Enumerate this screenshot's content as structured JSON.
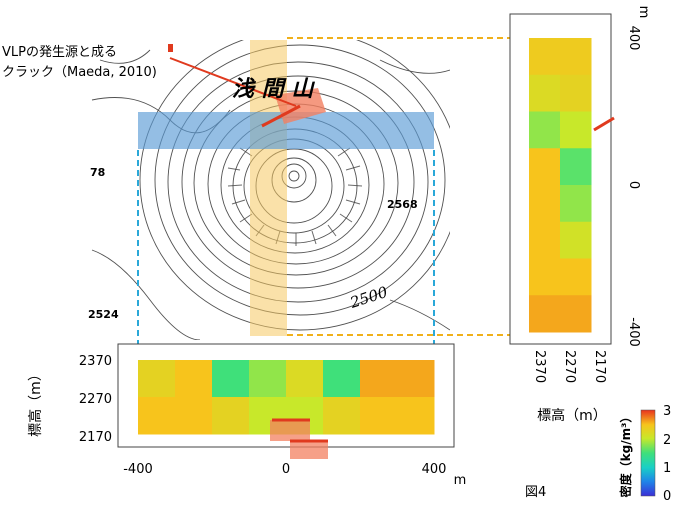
{
  "annotation": {
    "line1": "VLPの発生源と成る",
    "line2": "クラック（Maeda, 2010)"
  },
  "map": {
    "title": "浅 間 山",
    "contour_labels": [
      "78",
      "2568",
      "2500",
      "2524"
    ]
  },
  "bottom_panel": {
    "ylabel": "標高（m）",
    "yticks": [
      "2370",
      "2270",
      "2170"
    ],
    "xticks": [
      "-400",
      "0",
      "400"
    ],
    "xunit": "m"
  },
  "right_panel": {
    "xlabel": "標高（m）",
    "xticks": [
      "2370",
      "2270",
      "2170"
    ],
    "yticks": [
      "400",
      "0",
      "-400"
    ],
    "yunit": "m"
  },
  "colorbar": {
    "label": "密度（kg/m³）",
    "ticks": [
      "3",
      "2",
      "1",
      "0"
    ]
  },
  "figure_label": "図4",
  "chart_data": [
    {
      "type": "heatmap",
      "name_hint": "bottom cross-section (E-W)",
      "x_range": [
        -400,
        400
      ],
      "x_cells": [
        -350,
        -250,
        -150,
        -50,
        50,
        150,
        250,
        350
      ],
      "elevations": [
        "2370-2270",
        "2270-2170"
      ],
      "density": [
        [
          2.3,
          2.5,
          1.5,
          1.8,
          2.2,
          1.5,
          2.6,
          2.6
        ],
        [
          2.5,
          2.5,
          2.3,
          2.0,
          2.0,
          2.3,
          2.5,
          2.5
        ]
      ],
      "color_range": [
        0,
        3
      ]
    },
    {
      "type": "heatmap",
      "name_hint": "right cross-section (N-S)",
      "y_range": [
        -400,
        400
      ],
      "y_cells": [
        350,
        250,
        150,
        50,
        -50,
        -150,
        -250,
        -350
      ],
      "elevations": [
        "2370-2270",
        "2270-2170"
      ],
      "density": [
        [
          2.4,
          2.4
        ],
        [
          2.2,
          2.3
        ],
        [
          1.8,
          2.0
        ],
        [
          2.5,
          1.6
        ],
        [
          2.5,
          1.8
        ],
        [
          2.5,
          2.1
        ],
        [
          2.5,
          2.5
        ],
        [
          2.6,
          2.6
        ]
      ],
      "color_range": [
        0,
        3
      ]
    }
  ],
  "colors": {
    "accent_red": "#e03a1e",
    "blue_band": "#5b9bd5",
    "yellow_band": "#f5c862",
    "dashed_yellow": "#f0b01a",
    "dashed_blue": "#2aa8d8"
  }
}
